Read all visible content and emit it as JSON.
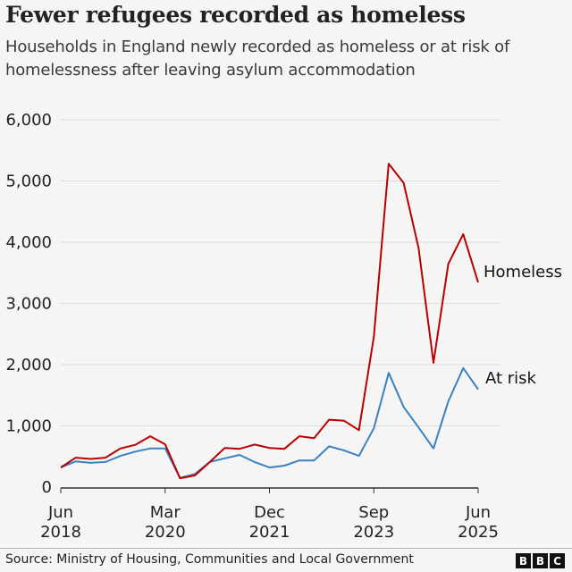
{
  "header": {
    "title": "Fewer refugees recorded as homeless",
    "subtitle": "Households in England newly recorded as homeless or at risk of homelessness after leaving asylum accommodation"
  },
  "footer": {
    "source": "Source: Ministry of Housing, Communities and Local Government",
    "logo_letters": [
      "B",
      "B",
      "C"
    ]
  },
  "colors": {
    "homeless": "#b80000",
    "at_risk": "#3a82c0",
    "grid": "#dcdcdc",
    "axis": "#333333"
  },
  "chart_data": {
    "type": "line",
    "title": "Fewer refugees recorded as homeless",
    "subtitle": "Households in England newly recorded as homeless or at risk of homelessness after leaving asylum accommodation",
    "xlabel": "",
    "ylabel": "",
    "ylim": [
      0,
      6000
    ],
    "yticks": [
      0,
      1000,
      2000,
      3000,
      4000,
      5000,
      6000
    ],
    "ytick_labels": [
      "0",
      "1,000",
      "2,000",
      "3,000",
      "4,000",
      "5,000",
      "6,000"
    ],
    "xticks": [
      {
        "index": 0,
        "line1": "Jun",
        "line2": "2018"
      },
      {
        "index": 7,
        "line1": "Mar",
        "line2": "2020"
      },
      {
        "index": 14,
        "line1": "Dec",
        "line2": "2021"
      },
      {
        "index": 21,
        "line1": "Sep",
        "line2": "2023"
      },
      {
        "index": 28,
        "line1": "Jun",
        "line2": "2025"
      }
    ],
    "x": [
      "Jun 2018",
      "Sep 2018",
      "Dec 2018",
      "Mar 2019",
      "Jun 2019",
      "Sep 2019",
      "Dec 2019",
      "Mar 2020",
      "Jun 2020",
      "Sep 2020",
      "Dec 2020",
      "Mar 2021",
      "Jun 2021",
      "Sep 2021",
      "Dec 2021",
      "Mar 2022",
      "Jun 2022",
      "Sep 2022",
      "Dec 2022",
      "Mar 2023",
      "Jun 2023",
      "Sep 2023",
      "Dec 2023",
      "Mar 2024",
      "Jun 2024",
      "Sep 2024",
      "Dec 2024",
      "Mar 2025",
      "Jun 2025"
    ],
    "grid": true,
    "legend": "direct-labels-right",
    "series": [
      {
        "name": "Homeless",
        "color": "#b80000",
        "values": [
          320,
          480,
          460,
          480,
          630,
          690,
          830,
          700,
          145,
          190,
          410,
          640,
          625,
          695,
          640,
          625,
          830,
          800,
          1100,
          1085,
          930,
          2455,
          5280,
          4970,
          3910,
          2030,
          3645,
          4130,
          3345
        ]
      },
      {
        "name": "At risk",
        "color": "#3a82c0",
        "values": [
          320,
          420,
          395,
          410,
          510,
          580,
          630,
          630,
          150,
          215,
          410,
          470,
          525,
          410,
          320,
          350,
          435,
          435,
          665,
          600,
          510,
          960,
          1865,
          1310,
          975,
          630,
          1400,
          1945,
          1595
        ]
      }
    ]
  }
}
